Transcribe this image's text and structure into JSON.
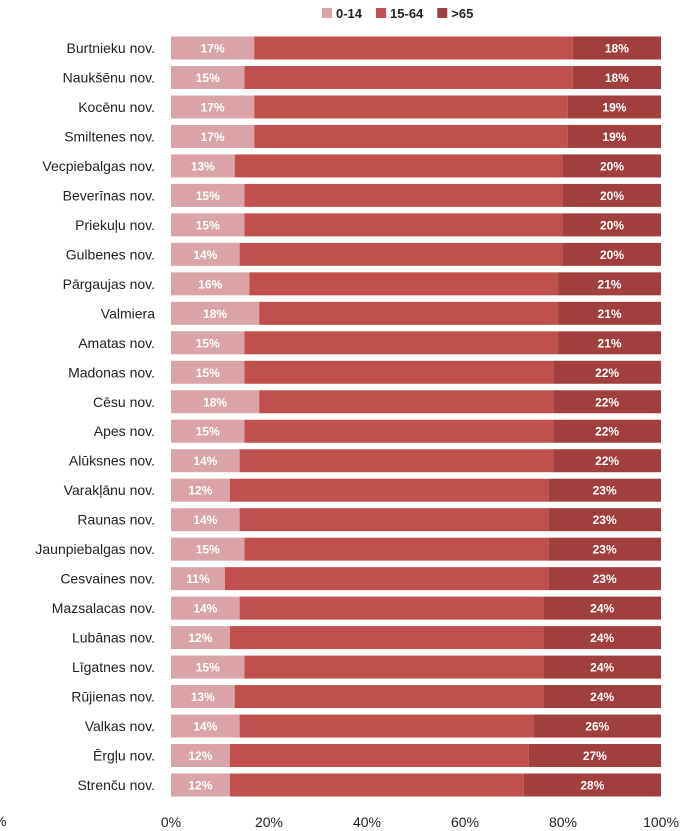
{
  "chart_data": {
    "type": "bar",
    "orientation": "horizontal",
    "stacked": "percent",
    "categories": [
      "Burtnieku nov.",
      "Naukšēnu nov.",
      "Kocēnu nov.",
      "Smiltenes nov.",
      "Vecpiebalgas nov.",
      "Beverīnas nov.",
      "Priekuļu nov.",
      "Gulbenes nov.",
      "Pārgaujas nov.",
      "Valmiera",
      "Amatas nov.",
      "Madonas nov.",
      "Cēsu nov.",
      "Apes nov.",
      "Alūksnes nov.",
      "Varakļānu nov.",
      "Raunas nov.",
      "Jaunpiebalgas nov.",
      "Cesvaines nov.",
      "Mazsalacas nov.",
      "Lubānas nov.",
      "Līgatnes nov.",
      "Rūjienas nov.",
      "Valkas nov.",
      "Ērgļu nov.",
      "Strenču nov."
    ],
    "series": [
      {
        "name": "0-14",
        "color": "#d9a3a8",
        "values": [
          17,
          15,
          17,
          17,
          13,
          15,
          15,
          14,
          16,
          18,
          15,
          15,
          18,
          15,
          14,
          12,
          14,
          15,
          11,
          14,
          12,
          15,
          13,
          14,
          12,
          12
        ],
        "labels": [
          "17%",
          "15%",
          "17%",
          "17%",
          "13%",
          "15%",
          "15%",
          "14%",
          "16%",
          "18%",
          "15%",
          "15%",
          "18%",
          "15%",
          "14%",
          "12%",
          "14%",
          "15%",
          "11%",
          "14%",
          "12%",
          "15%",
          "13%",
          "14%",
          "12%",
          "12%"
        ]
      },
      {
        "name": "15-64",
        "color": "#c0504d",
        "values": [
          65,
          67,
          64,
          64,
          67,
          65,
          65,
          66,
          63,
          61,
          64,
          63,
          60,
          63,
          64,
          65,
          63,
          62,
          66,
          62,
          64,
          61,
          63,
          60,
          61,
          60
        ],
        "labels": []
      },
      {
        "name": ">65",
        "color": "#a13e3e",
        "values": [
          18,
          18,
          19,
          19,
          20,
          20,
          20,
          20,
          21,
          21,
          21,
          22,
          22,
          22,
          22,
          23,
          23,
          23,
          23,
          24,
          24,
          24,
          24,
          26,
          27,
          28
        ],
        "labels": [
          "18%",
          "18%",
          "19%",
          "19%",
          "20%",
          "20%",
          "20%",
          "20%",
          "21%",
          "21%",
          "21%",
          "22%",
          "22%",
          "22%",
          "22%",
          "23%",
          "23%",
          "23%",
          "23%",
          "24%",
          "24%",
          "24%",
          "24%",
          "26%",
          "27%",
          "28%"
        ]
      }
    ],
    "xlim": [
      0,
      100
    ],
    "x_ticks": [
      "0%",
      "20%",
      "40%",
      "60%",
      "80%",
      "100%"
    ],
    "left_edge_text": "%",
    "legend": {
      "position": "top-center",
      "items": [
        "0-14",
        "15-64",
        ">65"
      ]
    },
    "grid": false
  }
}
